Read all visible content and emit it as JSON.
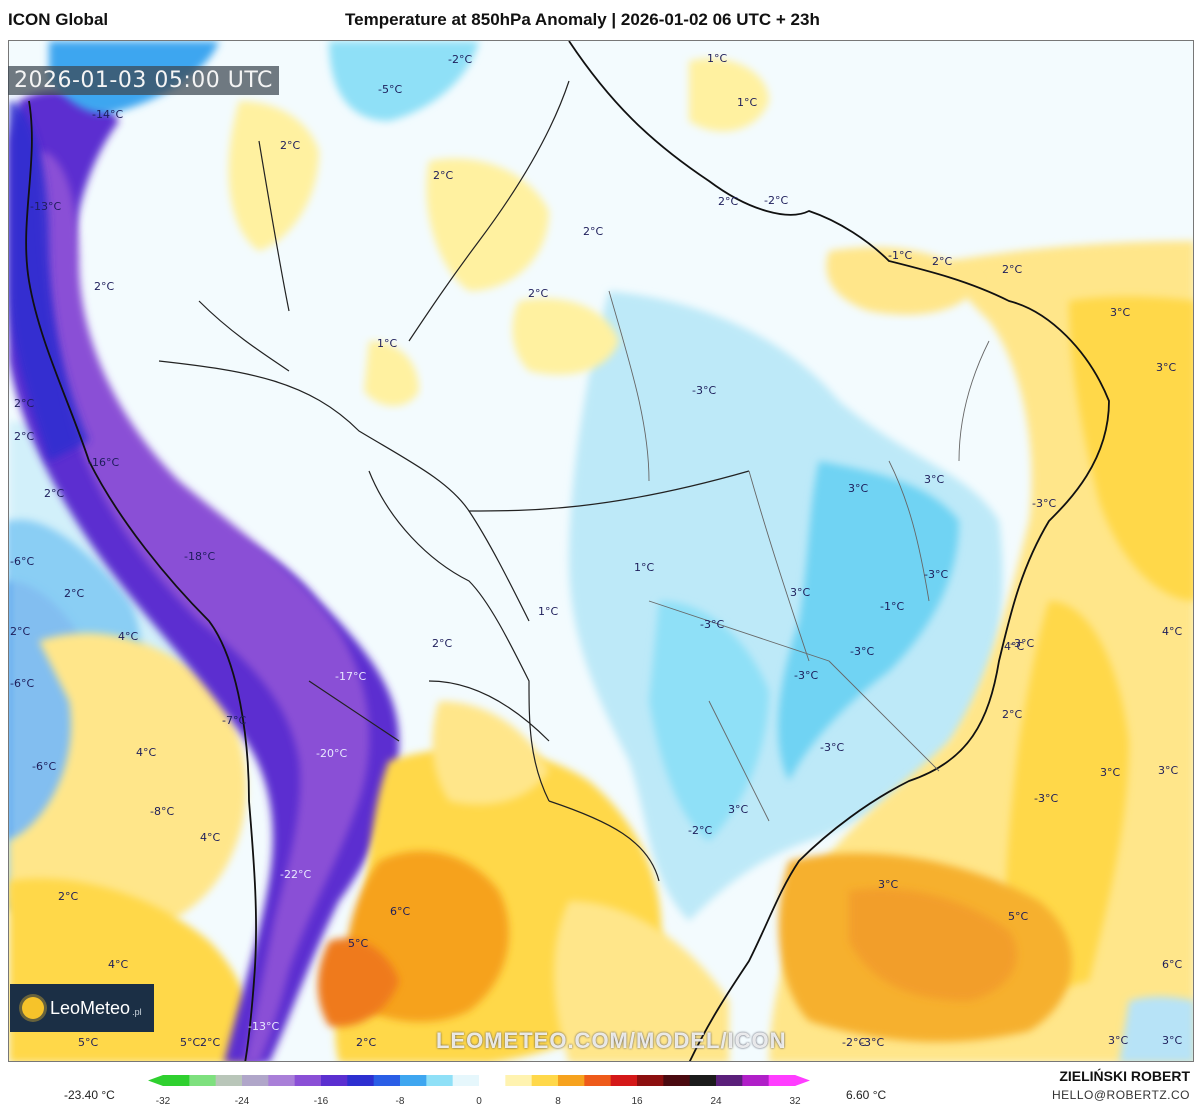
{
  "header": {
    "model": "ICON Global",
    "title": "Temperature at 850hPa Anomaly | 2026-01-02 06 UTC + 23h"
  },
  "timestamp": "2026-01-03 05:00 UTC",
  "logo": {
    "name": "LeoMeteo",
    "tld": ".pl"
  },
  "watermark": "LEOMETEO.COM/MODEL/ICON",
  "map_labels": [
    {
      "text": "-14°C",
      "tone": "dark"
    },
    {
      "text": "-13°C",
      "tone": "dark"
    },
    {
      "text": "-16°C",
      "tone": "dark"
    },
    {
      "text": "-18°C",
      "tone": "dark"
    },
    {
      "text": "-17°C",
      "tone": "light"
    },
    {
      "text": "-20°C",
      "tone": "light"
    },
    {
      "text": "-22°C",
      "tone": "light"
    },
    {
      "text": "-13°C",
      "tone": "light"
    },
    {
      "text": "-5°C",
      "tone": "dark"
    },
    {
      "text": "-2°C",
      "tone": "dark"
    },
    {
      "text": "1°C",
      "tone": "dark"
    },
    {
      "text": "1°C",
      "tone": "dark"
    },
    {
      "text": "2°C",
      "tone": "dark"
    },
    {
      "text": "2°C",
      "tone": "dark"
    },
    {
      "text": "2°C",
      "tone": "dark"
    },
    {
      "text": "2°C",
      "tone": "dark"
    },
    {
      "text": "2°C",
      "tone": "dark"
    },
    {
      "text": "1°C",
      "tone": "dark"
    },
    {
      "text": "1°C",
      "tone": "dark"
    },
    {
      "text": "2°C",
      "tone": "dark"
    },
    {
      "text": "2°C",
      "tone": "dark"
    },
    {
      "text": "2°C",
      "tone": "dark"
    },
    {
      "text": "2°C",
      "tone": "dark"
    },
    {
      "text": "2°C",
      "tone": "dark"
    },
    {
      "text": "-6°C",
      "tone": "dark"
    },
    {
      "text": "2°C",
      "tone": "dark"
    },
    {
      "text": "-6°C",
      "tone": "dark"
    },
    {
      "text": "4°C",
      "tone": "dark"
    },
    {
      "text": "-7°C",
      "tone": "dark"
    },
    {
      "text": "4°C",
      "tone": "dark"
    },
    {
      "text": "-6°C",
      "tone": "dark"
    },
    {
      "text": "-8°C",
      "tone": "dark"
    },
    {
      "text": "4°C",
      "tone": "dark"
    },
    {
      "text": "2°C",
      "tone": "dark"
    },
    {
      "text": "4°C",
      "tone": "dark"
    },
    {
      "text": "5°C",
      "tone": "dark"
    },
    {
      "text": "5°C",
      "tone": "dark"
    },
    {
      "text": "2°C",
      "tone": "dark"
    },
    {
      "text": "-3°C",
      "tone": "dark"
    },
    {
      "text": "1°C",
      "tone": "dark"
    },
    {
      "text": "2°C",
      "tone": "dark"
    },
    {
      "text": "-2°C",
      "tone": "dark"
    },
    {
      "text": "-1°C",
      "tone": "dark"
    },
    {
      "text": "2°C",
      "tone": "dark"
    },
    {
      "text": "2°C",
      "tone": "dark"
    },
    {
      "text": "3°C",
      "tone": "dark"
    },
    {
      "text": "3°C",
      "tone": "dark"
    },
    {
      "text": "3°C",
      "tone": "dark"
    },
    {
      "text": "3°C",
      "tone": "dark"
    },
    {
      "text": "-3°C",
      "tone": "dark"
    },
    {
      "text": "-3°C",
      "tone": "dark"
    },
    {
      "text": "3°C",
      "tone": "dark"
    },
    {
      "text": "-1°C",
      "tone": "dark"
    },
    {
      "text": "-3°C",
      "tone": "dark"
    },
    {
      "text": "-3°C",
      "tone": "dark"
    },
    {
      "text": "-3°C",
      "tone": "dark"
    },
    {
      "text": "-3°C",
      "tone": "dark"
    },
    {
      "text": "-3°C",
      "tone": "dark"
    },
    {
      "text": "4°C",
      "tone": "dark"
    },
    {
      "text": "2°C",
      "tone": "dark"
    },
    {
      "text": "3°C",
      "tone": "dark"
    },
    {
      "text": "-2°C",
      "tone": "dark"
    },
    {
      "text": "-3°C",
      "tone": "dark"
    },
    {
      "text": "3°C",
      "tone": "dark"
    },
    {
      "text": "3°C",
      "tone": "dark"
    },
    {
      "text": "3°C",
      "tone": "dark"
    },
    {
      "text": "5°C",
      "tone": "dark"
    },
    {
      "text": "6°C",
      "tone": "dark"
    },
    {
      "text": "5°C",
      "tone": "dark"
    },
    {
      "text": "6°C",
      "tone": "dark"
    },
    {
      "text": "3°C",
      "tone": "dark"
    },
    {
      "text": "3°C",
      "tone": "dark"
    },
    {
      "text": "4°C",
      "tone": "dark"
    },
    {
      "text": "-2°C",
      "tone": "dark"
    },
    {
      "text": "-3°C",
      "tone": "dark"
    },
    {
      "text": "2°C",
      "tone": "dark"
    }
  ],
  "colorbar": {
    "min_label": "-23.40 °C",
    "max_label": "6.60 °C",
    "ticks": [
      "-32",
      "-24",
      "-16",
      "-8",
      "0",
      "8",
      "16",
      "24",
      "32"
    ],
    "colors": [
      "#2fd02f",
      "#7ee07e",
      "#b9c6b9",
      "#b0a6c9",
      "#a97fd8",
      "#8a4fd6",
      "#5b2fd0",
      "#2d2fd0",
      "#2a5ee6",
      "#3ea6f0",
      "#8fe0f7",
      "#e6f7fc",
      "#ffffff",
      "#fff3b0",
      "#ffd84a",
      "#f6a21e",
      "#ee5a1a",
      "#d41818",
      "#8c0f0f",
      "#4a0a10",
      "#1b1b1b",
      "#5a1f7a",
      "#b01fc8",
      "#ff3dff"
    ]
  },
  "credit": {
    "author": "ZIELIŃSKI ROBERT",
    "email": "HELLO@ROBERTZ.CO"
  }
}
